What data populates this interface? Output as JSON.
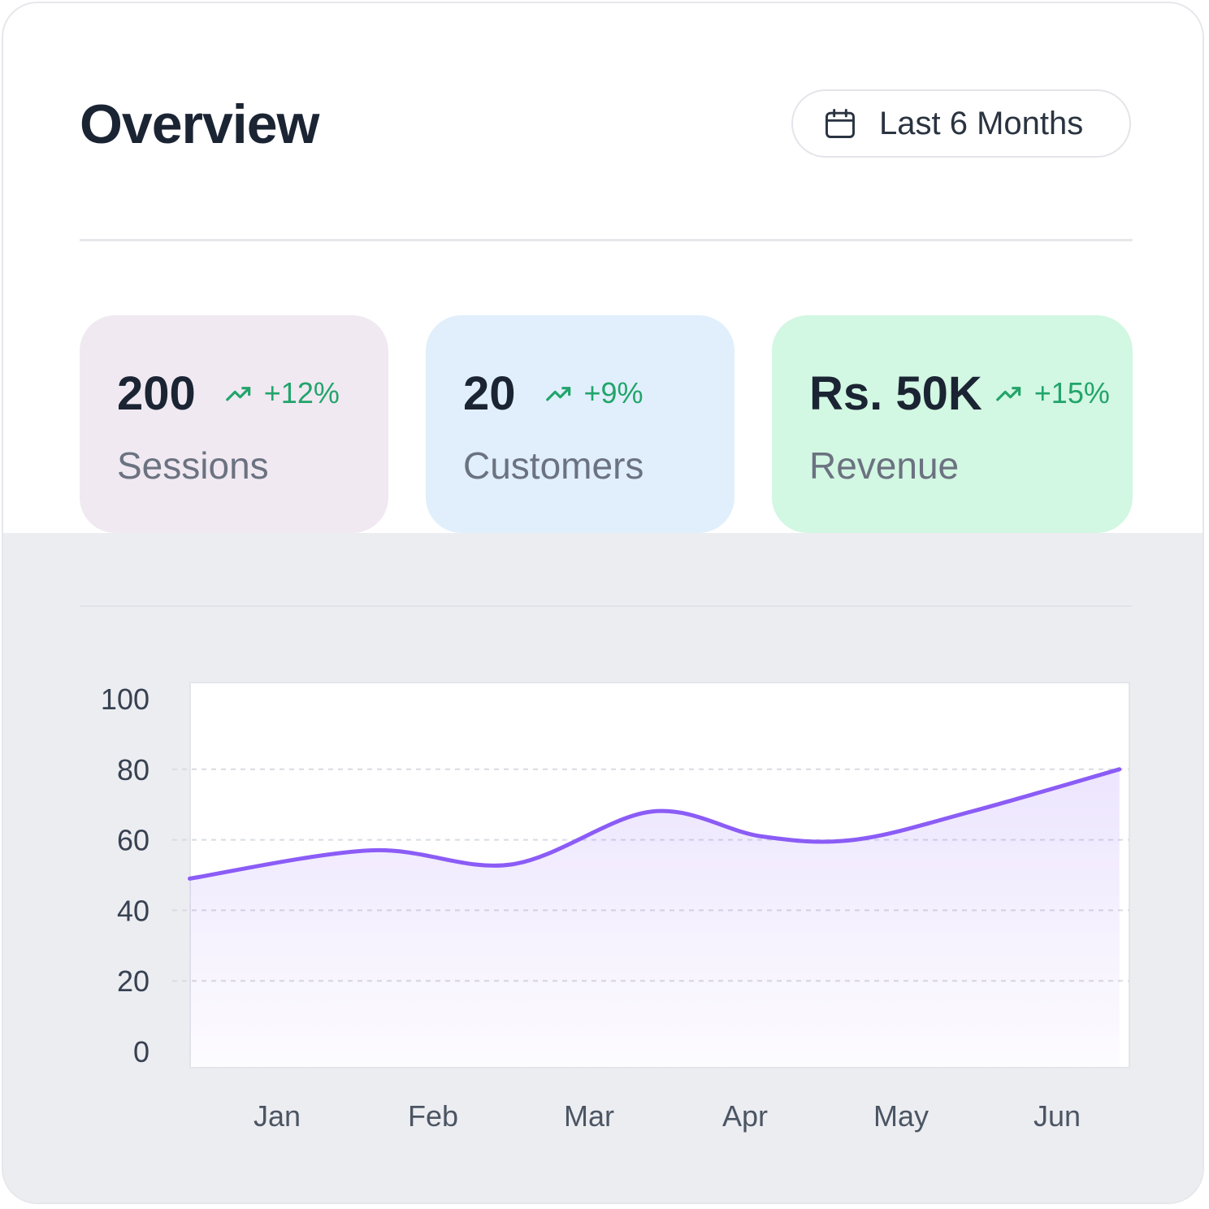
{
  "header": {
    "title": "Overview",
    "period_label": "Last 6 Months",
    "period_icon": "calendar-icon"
  },
  "stats": [
    {
      "value": "200",
      "change": "+12%",
      "label": "Sessions",
      "bg": "#f0e9f1"
    },
    {
      "value": "20",
      "change": "+9%",
      "label": "Customers",
      "bg": "#e0effb"
    },
    {
      "value": "Rs. 50K",
      "change": "+15%",
      "label": "Revenue",
      "bg": "#d2f7e2"
    }
  ],
  "colors": {
    "accent": "#8b5cf6",
    "positive": "#22a46b"
  },
  "chart_data": {
    "type": "area",
    "categories": [
      "Jan",
      "Feb",
      "Mar",
      "Apr",
      "May",
      "Jun"
    ],
    "x": [
      -0.56,
      0.56,
      1.56,
      2.56,
      3.56,
      4.59
    ],
    "values": [
      49,
      57,
      53,
      68,
      60,
      81
    ],
    "curve_points": [
      [
        -0.56,
        49
      ],
      [
        0.6,
        57
      ],
      [
        1.5,
        53
      ],
      [
        2.4,
        68
      ],
      [
        3.1,
        61
      ],
      [
        3.7,
        60
      ],
      [
        4.45,
        68
      ],
      [
        5.4,
        80
      ]
    ],
    "yticks": [
      0,
      20,
      40,
      60,
      80,
      100
    ],
    "ylim": [
      0,
      100
    ],
    "gridlines": [
      20,
      40,
      60,
      80
    ],
    "line_color": "#8b5cf6",
    "fill_color": "#8b5cf6"
  }
}
